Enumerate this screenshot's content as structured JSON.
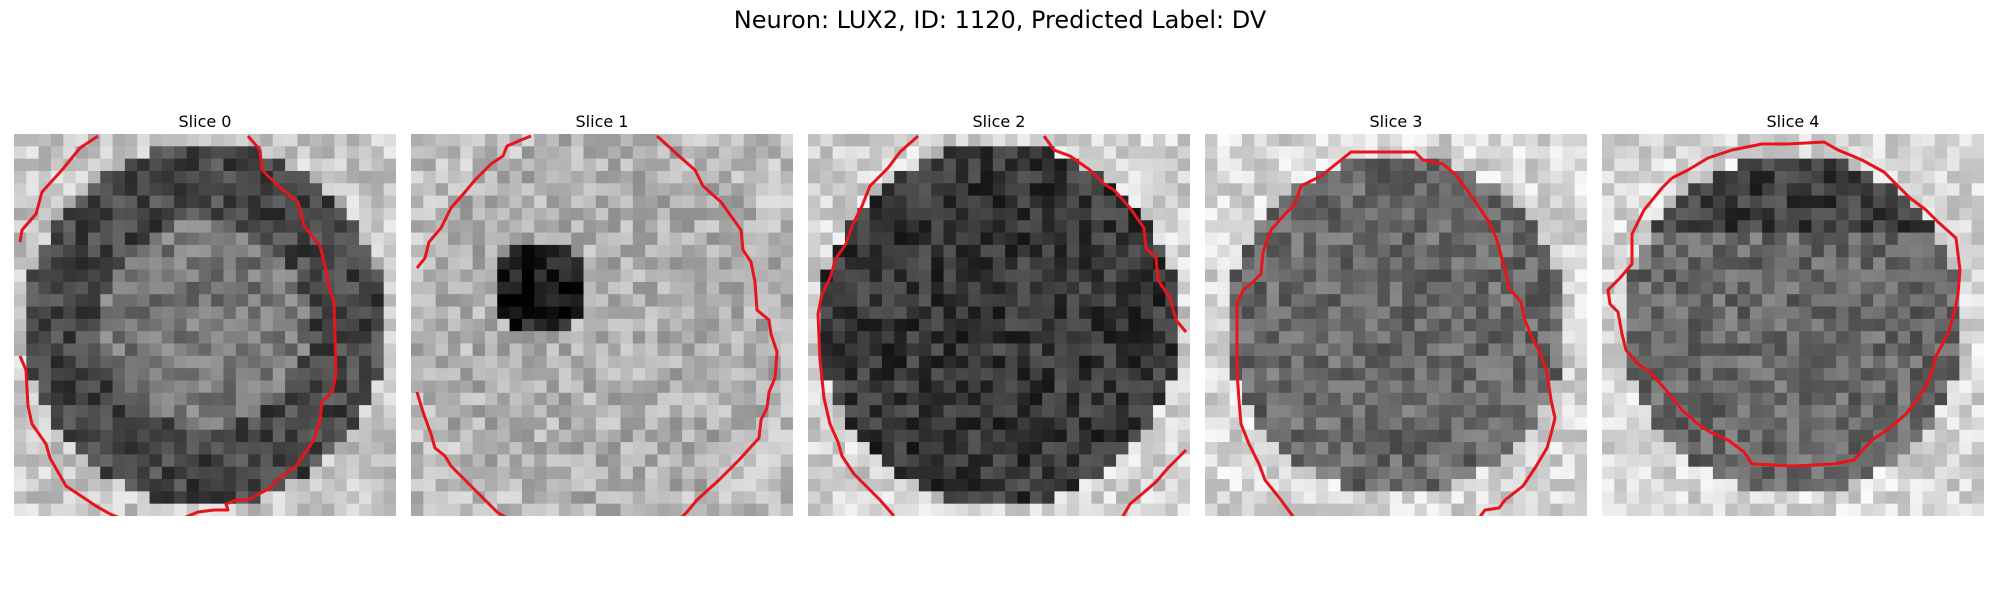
{
  "figure": {
    "title": "Neuron: LUX2, ID: 1120, Predicted Label: DV",
    "panels": [
      {
        "title": "Slice 0",
        "seed": 11,
        "pattern": "ring",
        "outline": "slice0"
      },
      {
        "title": "Slice 1",
        "seed": 23,
        "pattern": "bright",
        "outline": "slice1"
      },
      {
        "title": "Slice 2",
        "seed": 37,
        "pattern": "dark",
        "outline": "slice2"
      },
      {
        "title": "Slice 3",
        "seed": 41,
        "pattern": "cell",
        "outline": "slice3"
      },
      {
        "title": "Slice 4",
        "seed": 53,
        "pattern": "cell-dark-top",
        "outline": "slice4"
      }
    ],
    "outline_color": "#e8141b"
  }
}
